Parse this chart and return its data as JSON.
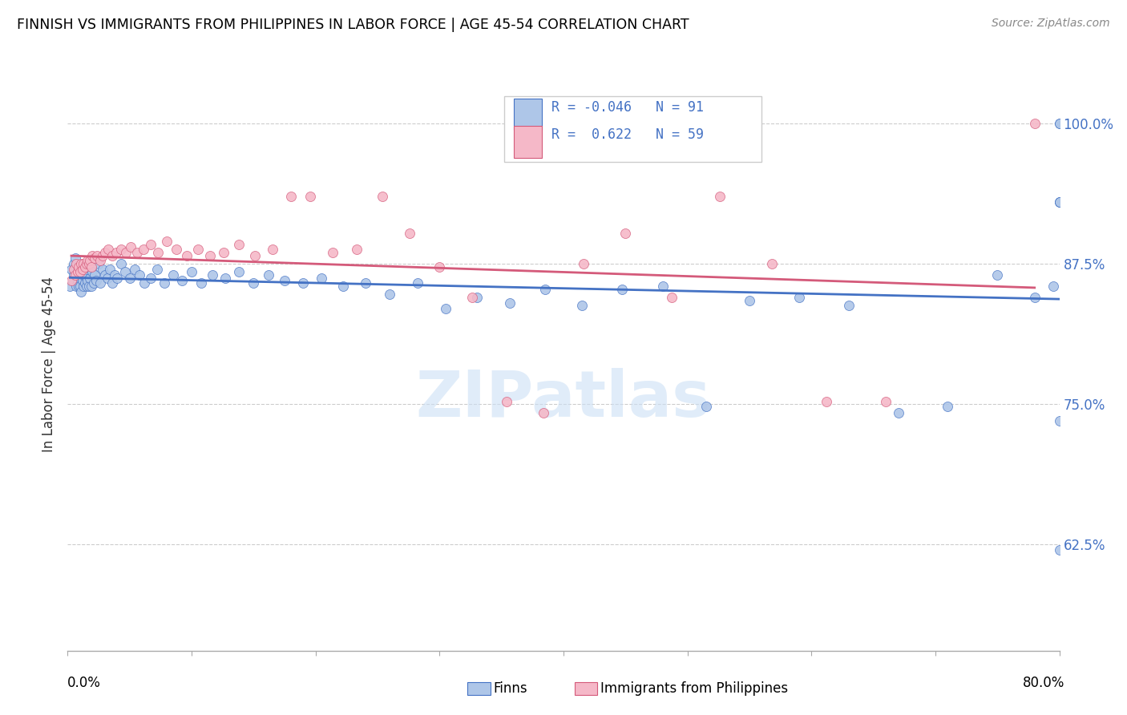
{
  "title": "FINNISH VS IMMIGRANTS FROM PHILIPPINES IN LABOR FORCE | AGE 45-54 CORRELATION CHART",
  "source": "Source: ZipAtlas.com",
  "ylabel": "In Labor Force | Age 45-54",
  "legend_r_finns": "-0.046",
  "legend_n_finns": "91",
  "legend_r_phil": "0.622",
  "legend_n_phil": "59",
  "color_finns": "#aec6e8",
  "color_phil": "#f5b8c8",
  "color_trend_finns": "#4472c4",
  "color_trend_phil": "#d45a7a",
  "xlim": [
    0.0,
    0.8
  ],
  "ylim": [
    0.53,
    1.04
  ],
  "yticks": [
    0.625,
    0.75,
    0.875,
    1.0
  ],
  "ytick_labels": [
    "62.5%",
    "75.0%",
    "87.5%",
    "100.0%"
  ],
  "finns_x": [
    0.002,
    0.003,
    0.004,
    0.005,
    0.005,
    0.006,
    0.006,
    0.007,
    0.007,
    0.008,
    0.008,
    0.009,
    0.009,
    0.01,
    0.01,
    0.011,
    0.011,
    0.012,
    0.012,
    0.013,
    0.013,
    0.014,
    0.014,
    0.015,
    0.015,
    0.016,
    0.016,
    0.017,
    0.018,
    0.019,
    0.02,
    0.021,
    0.022,
    0.023,
    0.025,
    0.026,
    0.028,
    0.03,
    0.032,
    0.034,
    0.036,
    0.038,
    0.04,
    0.043,
    0.046,
    0.05,
    0.054,
    0.058,
    0.062,
    0.067,
    0.072,
    0.078,
    0.085,
    0.092,
    0.1,
    0.108,
    0.117,
    0.127,
    0.138,
    0.15,
    0.162,
    0.175,
    0.19,
    0.205,
    0.222,
    0.24,
    0.26,
    0.282,
    0.305,
    0.33,
    0.357,
    0.385,
    0.415,
    0.447,
    0.48,
    0.515,
    0.55,
    0.59,
    0.63,
    0.67,
    0.71,
    0.75,
    0.78,
    0.795,
    0.8,
    0.8,
    0.8,
    0.8,
    0.8,
    0.8,
    0.8
  ],
  "finns_y": [
    0.855,
    0.87,
    0.86,
    0.875,
    0.865,
    0.87,
    0.88,
    0.865,
    0.855,
    0.87,
    0.86,
    0.855,
    0.865,
    0.87,
    0.855,
    0.865,
    0.85,
    0.87,
    0.86,
    0.865,
    0.855,
    0.87,
    0.858,
    0.863,
    0.855,
    0.87,
    0.86,
    0.855,
    0.862,
    0.855,
    0.868,
    0.858,
    0.865,
    0.86,
    0.875,
    0.858,
    0.87,
    0.865,
    0.862,
    0.87,
    0.858,
    0.865,
    0.862,
    0.875,
    0.868,
    0.862,
    0.87,
    0.865,
    0.858,
    0.862,
    0.87,
    0.858,
    0.865,
    0.86,
    0.868,
    0.858,
    0.865,
    0.862,
    0.868,
    0.858,
    0.865,
    0.86,
    0.858,
    0.862,
    0.855,
    0.858,
    0.848,
    0.858,
    0.835,
    0.845,
    0.84,
    0.852,
    0.838,
    0.852,
    0.855,
    0.748,
    0.842,
    0.845,
    0.838,
    0.742,
    0.748,
    0.865,
    0.845,
    0.855,
    0.62,
    0.735,
    0.93,
    1.0,
    0.93,
    0.93,
    1.0
  ],
  "phil_x": [
    0.003,
    0.005,
    0.006,
    0.007,
    0.008,
    0.009,
    0.01,
    0.011,
    0.012,
    0.013,
    0.014,
    0.015,
    0.016,
    0.017,
    0.018,
    0.019,
    0.02,
    0.022,
    0.024,
    0.026,
    0.028,
    0.03,
    0.033,
    0.036,
    0.039,
    0.043,
    0.047,
    0.051,
    0.056,
    0.061,
    0.067,
    0.073,
    0.08,
    0.088,
    0.096,
    0.105,
    0.115,
    0.126,
    0.138,
    0.151,
    0.165,
    0.18,
    0.196,
    0.214,
    0.233,
    0.254,
    0.276,
    0.3,
    0.326,
    0.354,
    0.384,
    0.416,
    0.45,
    0.487,
    0.526,
    0.568,
    0.612,
    0.66,
    0.78
  ],
  "phil_y": [
    0.86,
    0.87,
    0.865,
    0.875,
    0.868,
    0.872,
    0.868,
    0.875,
    0.87,
    0.875,
    0.872,
    0.875,
    0.878,
    0.875,
    0.878,
    0.872,
    0.882,
    0.88,
    0.882,
    0.878,
    0.882,
    0.885,
    0.888,
    0.882,
    0.885,
    0.888,
    0.885,
    0.89,
    0.885,
    0.888,
    0.892,
    0.885,
    0.895,
    0.888,
    0.882,
    0.888,
    0.882,
    0.885,
    0.892,
    0.882,
    0.888,
    0.935,
    0.935,
    0.885,
    0.888,
    0.935,
    0.902,
    0.872,
    0.845,
    0.752,
    0.742,
    0.875,
    0.902,
    0.845,
    0.935,
    0.875,
    0.752,
    0.752,
    1.0
  ]
}
